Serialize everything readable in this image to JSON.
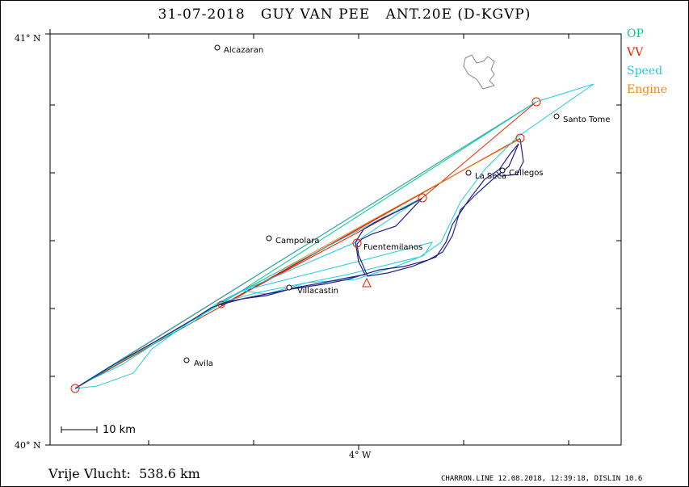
{
  "title": "31-07-2018   GUY VAN PEE   ANT.20E (D-KGVP)",
  "legend": [
    {
      "label": "OP",
      "color": "#00cc88"
    },
    {
      "label": "VV",
      "color": "#dd2200"
    },
    {
      "label": "Speed",
      "color": "#22cce0"
    },
    {
      "label": "Engine",
      "color": "#ee8822"
    }
  ],
  "axes": {
    "lat_top": "41° N",
    "lat_bottom": "40° N",
    "lon_mid": "4° W"
  },
  "towns": [
    {
      "name": "Alcazaran"
    },
    {
      "name": "Santo Tome"
    },
    {
      "name": "La Seca"
    },
    {
      "name": "Cellegos"
    },
    {
      "name": "Campolara"
    },
    {
      "name": "Fuentemilanos"
    },
    {
      "name": "Villacastin"
    },
    {
      "name": "Avila"
    }
  ],
  "scale": "10 km",
  "distance_text": "Vrije Vlucht:  538.6 km",
  "footer": "CHARRON.LINE 12.08.2018, 12:39:18, DISLIN 10.6",
  "colors": {
    "track": "#22228a",
    "water": "#888888"
  }
}
